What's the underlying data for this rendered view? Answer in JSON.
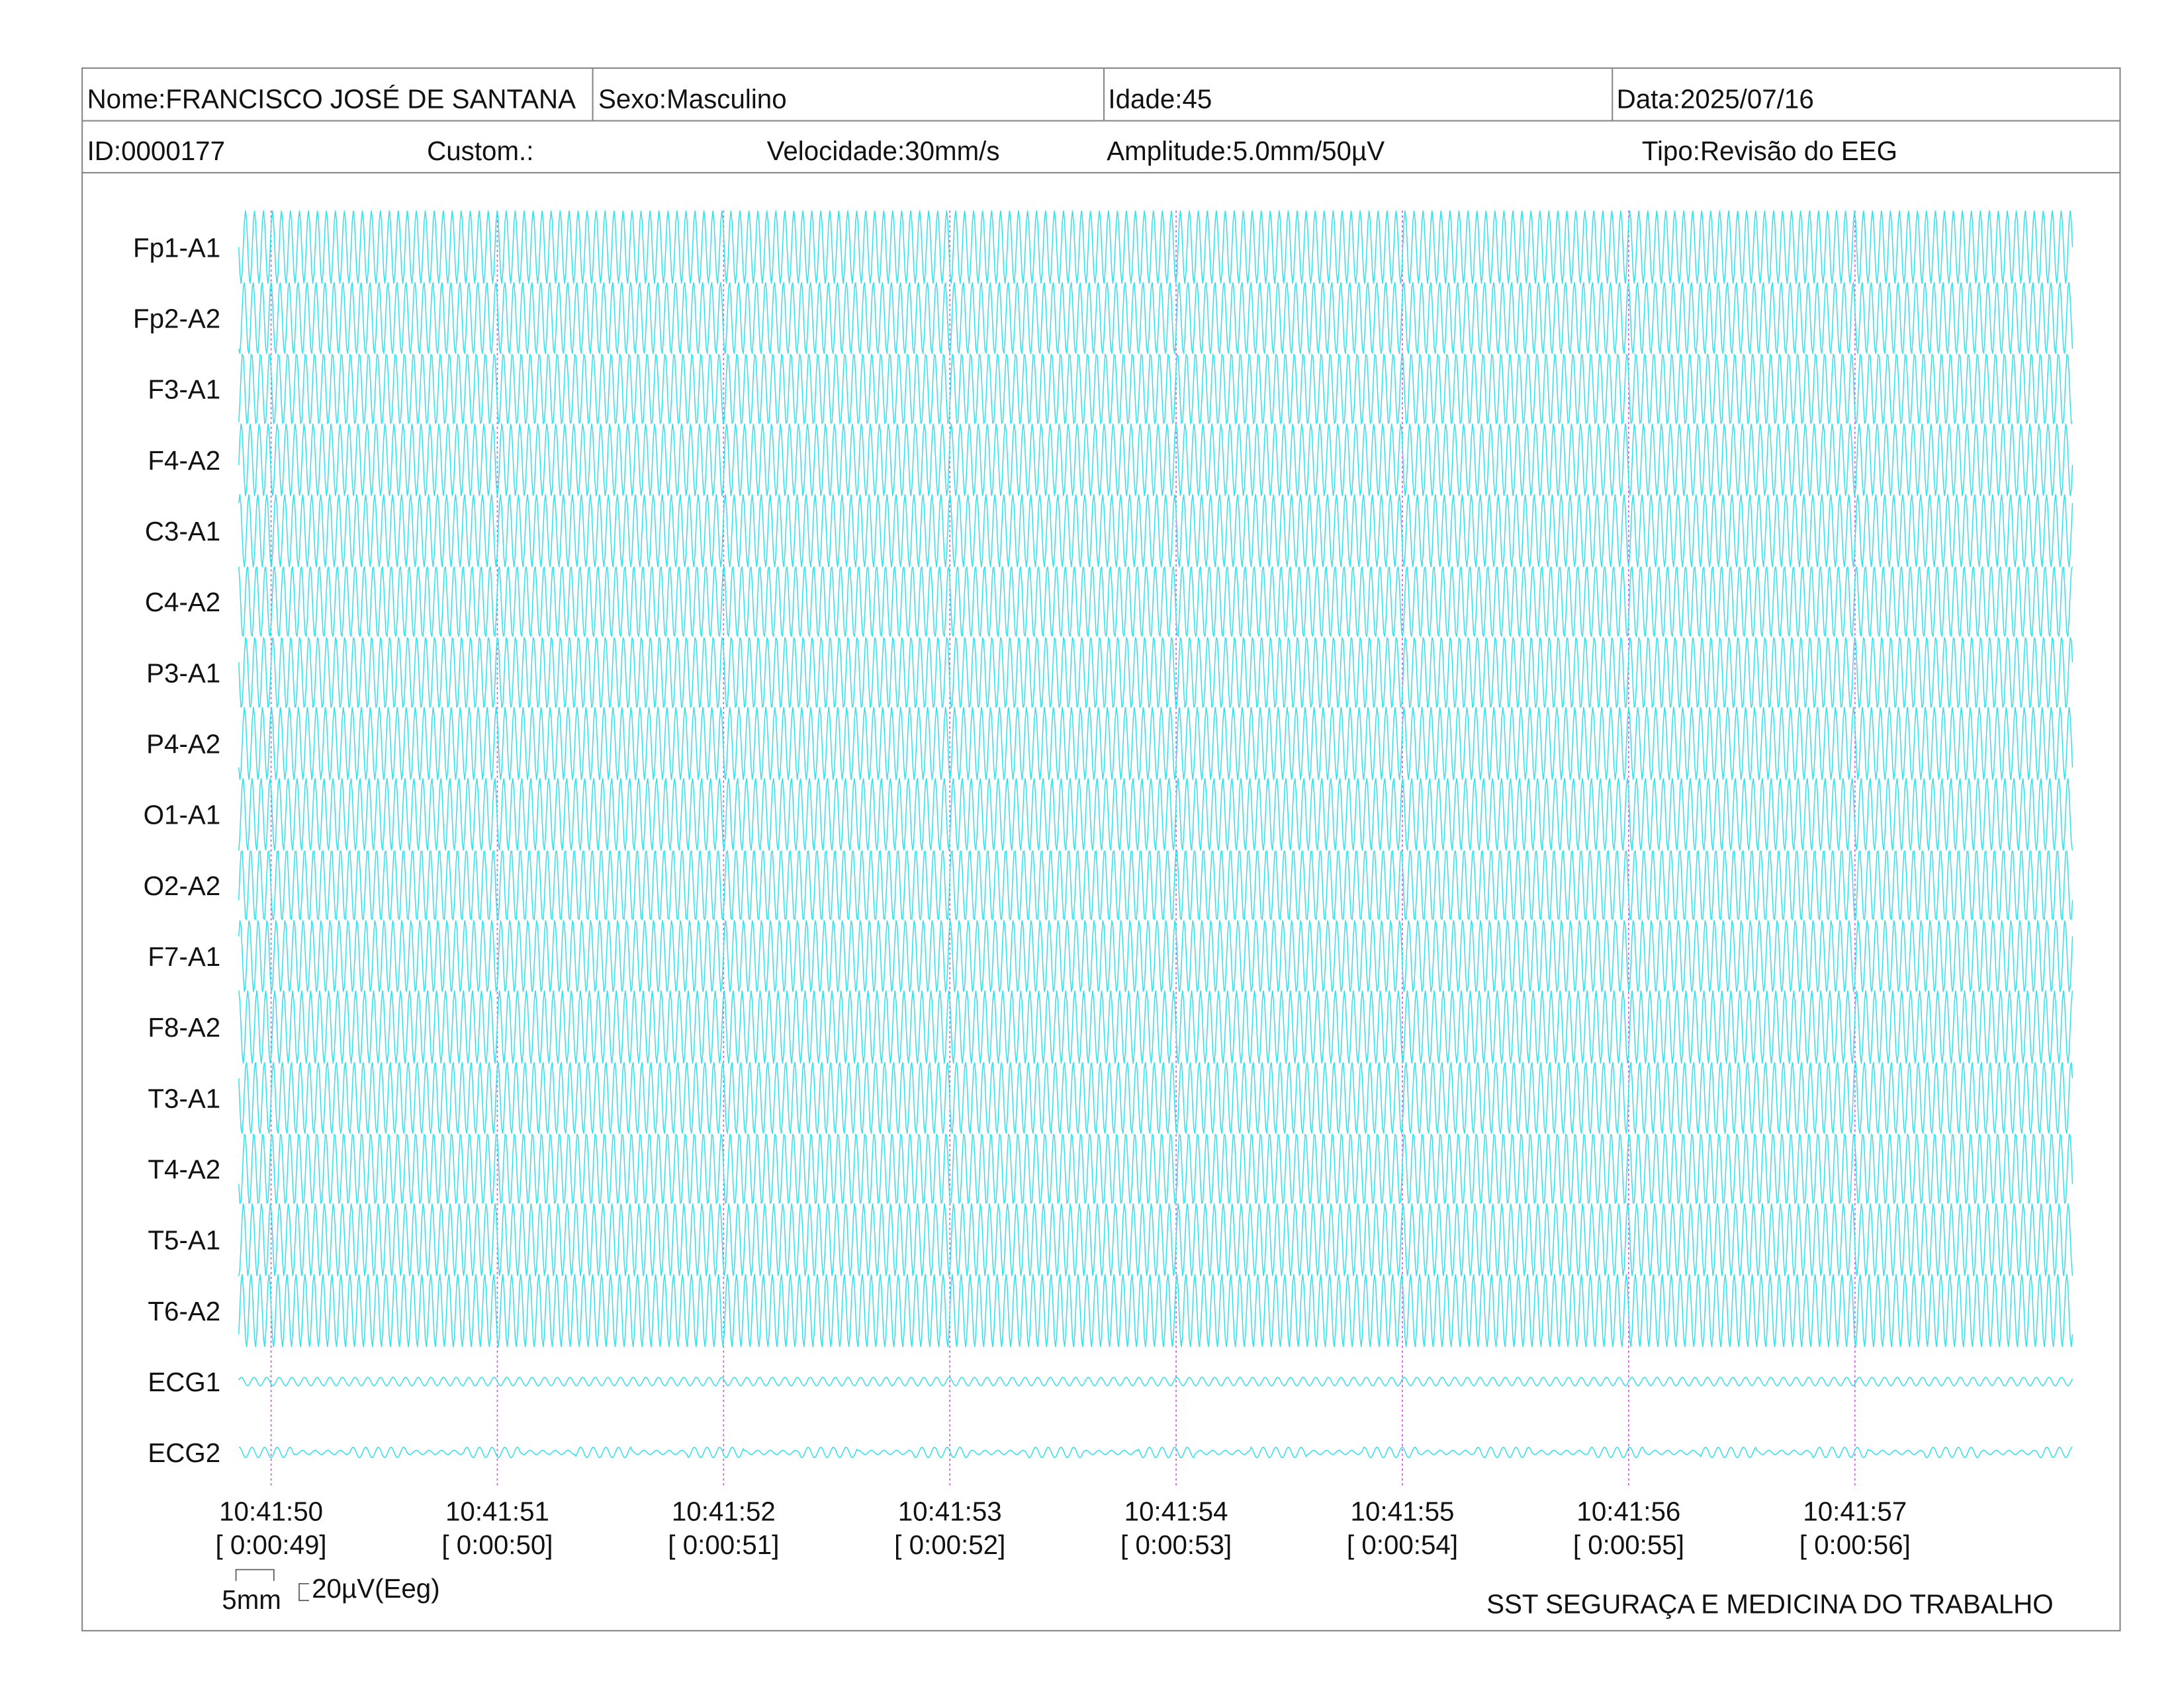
{
  "header": {
    "nome": "Nome:FRANCISCO JOSÉ DE SANTANA",
    "sexo": "Sexo:Masculino",
    "idade": "Idade:45",
    "data": "Data:2025/07/16",
    "id": "ID:0000177",
    "custom": "Custom.:",
    "velocidade": "Velocidade:30mm/s",
    "amplitude": "Amplitude:5.0mm/50µV",
    "tipo": "Tipo:Revisão do EEG"
  },
  "channels": [
    "Fp1-A1",
    "Fp2-A2",
    "F3-A1",
    "F4-A2",
    "C3-A1",
    "C4-A2",
    "P3-A1",
    "P4-A2",
    "O1-A1",
    "O2-A2",
    "F7-A1",
    "F8-A2",
    "T3-A1",
    "T4-A2",
    "T5-A1",
    "T6-A2",
    "ECG1",
    "ECG2"
  ],
  "time_markers": [
    {
      "time": "10:41:50",
      "elapsed": "[ 0:00:49]"
    },
    {
      "time": "10:41:51",
      "elapsed": "[ 0:00:50]"
    },
    {
      "time": "10:41:52",
      "elapsed": "[ 0:00:51]"
    },
    {
      "time": "10:41:53",
      "elapsed": "[ 0:00:52]"
    },
    {
      "time": "10:41:54",
      "elapsed": "[ 0:00:53]"
    },
    {
      "time": "10:41:55",
      "elapsed": "[ 0:00:54]"
    },
    {
      "time": "10:41:56",
      "elapsed": "[ 0:00:55]"
    },
    {
      "time": "10:41:57",
      "elapsed": "[ 0:00:56]"
    }
  ],
  "scale": {
    "time": "5mm",
    "amplitude": "20µV(Eeg)"
  },
  "footer": "SST SEGURAÇA E MEDICINA DO TRABALHO"
}
